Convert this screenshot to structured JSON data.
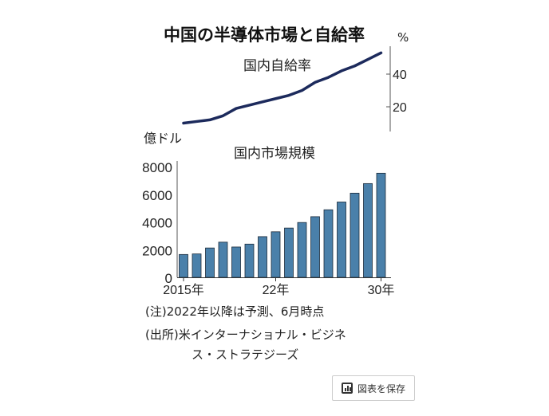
{
  "chart_data": [
    {
      "type": "line",
      "title": "中国の半導体市場と自給率",
      "series_label": "国内自給率",
      "unit": "%",
      "x": [
        2015,
        2016,
        2017,
        2018,
        2019,
        2020,
        2021,
        2022,
        2023,
        2024,
        2025,
        2026,
        2027,
        2028,
        2029,
        2030
      ],
      "values": [
        10,
        11,
        12,
        14.5,
        19,
        21,
        23,
        25,
        27,
        30,
        35,
        38,
        42,
        45,
        49,
        53
      ],
      "yticks": [
        "20",
        "40"
      ],
      "ylim": [
        0,
        60
      ],
      "color": "#1c2a5c"
    },
    {
      "type": "bar",
      "series_label": "国内市場規模",
      "unit": "億ドル",
      "x": [
        2015,
        2016,
        2017,
        2018,
        2019,
        2020,
        2021,
        2022,
        2023,
        2024,
        2025,
        2026,
        2027,
        2028,
        2029,
        2030
      ],
      "values": [
        1650,
        1690,
        2120,
        2540,
        2190,
        2400,
        2940,
        3290,
        3560,
        3960,
        4380,
        4880,
        5440,
        6080,
        6770,
        7520
      ],
      "yticks": [
        "0",
        "2000",
        "4000",
        "6000",
        "8000"
      ],
      "ylim": [
        0,
        8000
      ],
      "xticks": [
        {
          "index": 0,
          "label": "2015年"
        },
        {
          "index": 7,
          "label": "22年"
        },
        {
          "index": 15,
          "label": "30年"
        }
      ],
      "color": "#4a80aa"
    }
  ],
  "notes": {
    "note1": "(注)2022年以降は予測、6月時点",
    "source1": "(出所)米インターナショナル・ビジネ",
    "source2": "ス・ストラテジーズ"
  },
  "save_button": "図表を保存"
}
